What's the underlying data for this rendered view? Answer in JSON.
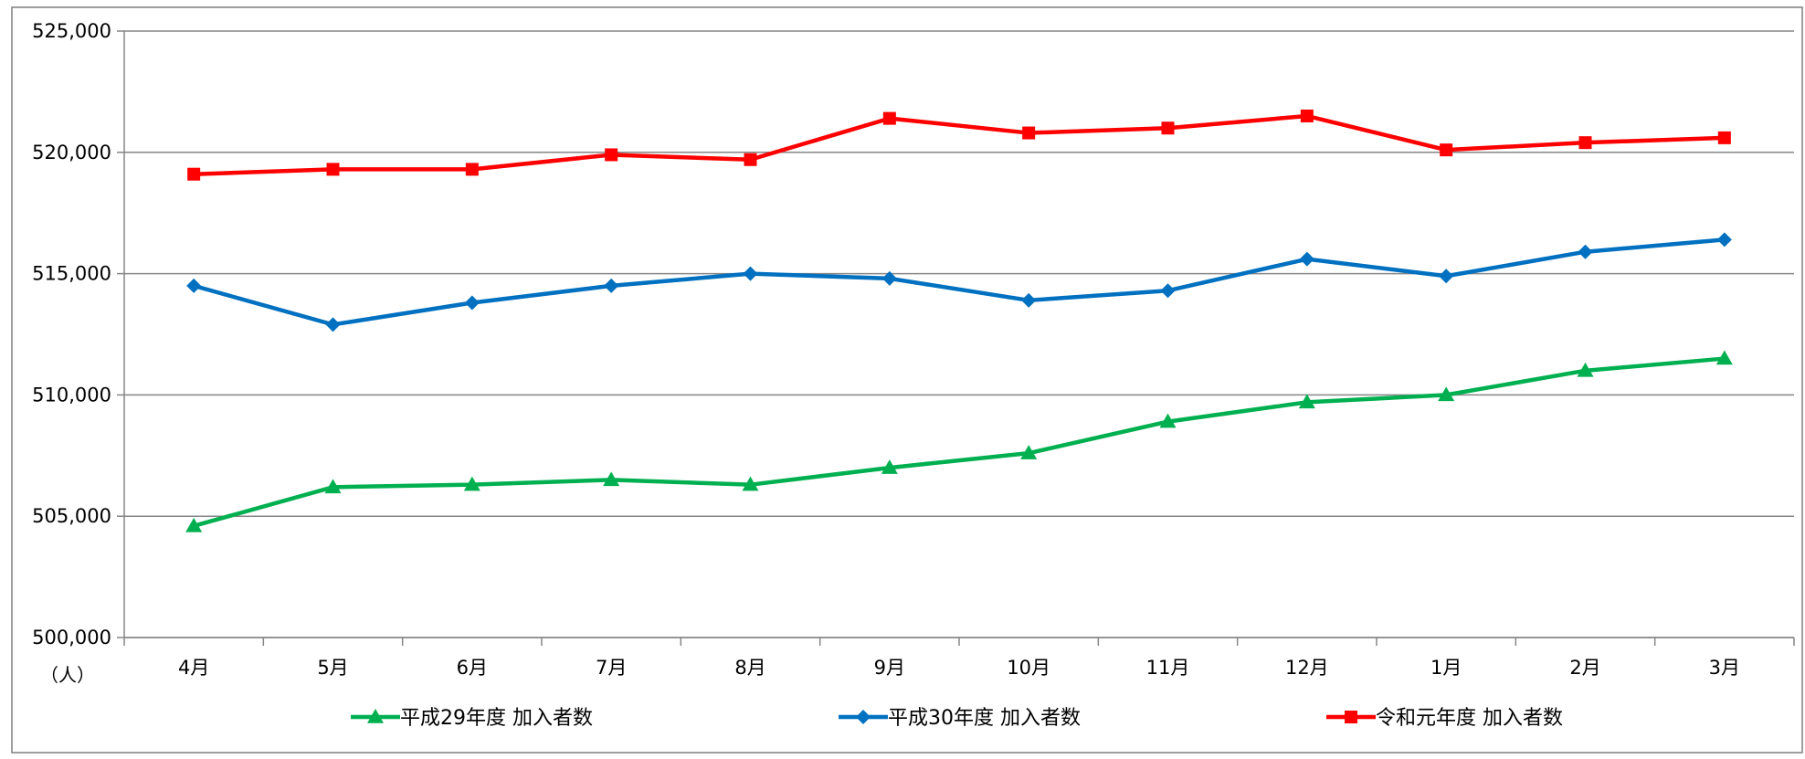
{
  "chart_data": {
    "type": "line",
    "unit_label": "（人）",
    "categories": [
      "4月",
      "5月",
      "6月",
      "7月",
      "8月",
      "9月",
      "10月",
      "11月",
      "12月",
      "1月",
      "2月",
      "3月"
    ],
    "ylim": [
      500000,
      525000
    ],
    "yticks": [
      500000,
      505000,
      510000,
      515000,
      520000,
      525000
    ],
    "ytick_labels": [
      "500,000",
      "505,000",
      "510,000",
      "515,000",
      "520,000",
      "525,000"
    ],
    "grid": true,
    "legend_position": "bottom",
    "series": [
      {
        "name": "平成29年度 加入者数",
        "color": "#00b050",
        "marker": "triangle",
        "values": [
          504600,
          506200,
          506300,
          506500,
          506300,
          507000,
          507600,
          508900,
          509700,
          510000,
          511000,
          511500
        ]
      },
      {
        "name": "平成30年度 加入者数",
        "color": "#0070c0",
        "marker": "diamond",
        "values": [
          514500,
          512900,
          513800,
          514500,
          515000,
          514800,
          513900,
          514300,
          515600,
          514900,
          515900,
          516400
        ]
      },
      {
        "name": "令和元年度 加入者数",
        "color": "#ff0000",
        "marker": "square",
        "values": [
          519100,
          519300,
          519300,
          519900,
          519700,
          521400,
          520800,
          521000,
          521500,
          520100,
          520400,
          520600
        ]
      }
    ]
  }
}
